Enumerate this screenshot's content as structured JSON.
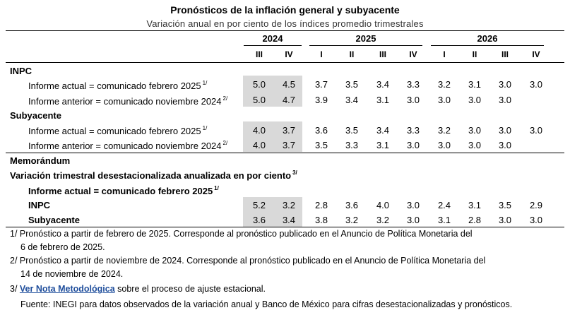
{
  "title": "Pronósticos de la inflación general y subyacente",
  "subtitle": "Variación anual en por ciento de los índices promedio trimestrales",
  "years": [
    "2024",
    "2025",
    "2026"
  ],
  "quarters": [
    "III",
    "IV",
    "I",
    "II",
    "III",
    "IV",
    "I",
    "II",
    "III",
    "IV"
  ],
  "sections": {
    "inpc": "INPC",
    "subyacente": "Subyacente",
    "memo": "Memorándum",
    "memo_sub": "Variación trimestral desestacionalizada anualizada en por ciento",
    "memo_sub_note": "3/",
    "memo_informe": "Informe actual = comunicado febrero 2025",
    "memo_informe_note": "1/",
    "memo_inpc": "INPC",
    "memo_subyacente": "Subyacente"
  },
  "row_labels": {
    "actual": "Informe actual = comunicado febrero 2025",
    "actual_note": "1/",
    "anterior": "Informe anterior = comunicado noviembre 2024",
    "anterior_note": "2/"
  },
  "inpc_actual": [
    "5.0",
    "4.5",
    "3.7",
    "3.5",
    "3.4",
    "3.3",
    "3.2",
    "3.1",
    "3.0",
    "3.0"
  ],
  "inpc_anterior": [
    "5.0",
    "4.7",
    "3.9",
    "3.4",
    "3.1",
    "3.0",
    "3.0",
    "3.0",
    "3.0",
    ""
  ],
  "sub_actual": [
    "4.0",
    "3.7",
    "3.6",
    "3.5",
    "3.4",
    "3.3",
    "3.2",
    "3.0",
    "3.0",
    "3.0"
  ],
  "sub_anterior": [
    "4.0",
    "3.7",
    "3.5",
    "3.3",
    "3.1",
    "3.0",
    "3.0",
    "3.0",
    "3.0",
    ""
  ],
  "memo_inpc_vals": [
    "5.2",
    "3.2",
    "2.8",
    "3.6",
    "4.0",
    "3.0",
    "2.4",
    "3.1",
    "3.5",
    "2.9"
  ],
  "memo_sub_vals": [
    "3.6",
    "3.4",
    "3.8",
    "3.2",
    "3.2",
    "3.0",
    "3.1",
    "2.8",
    "3.0",
    "3.0"
  ],
  "notes": {
    "n1a": "1/ Pronóstico a partir de febrero de 2025. Corresponde al pronóstico publicado en el Anuncio de Política Monetaria del",
    "n1b": "6 de febrero de 2025.",
    "n2a": "2/ Pronóstico a partir de noviembre de 2024. Corresponde al pronóstico publicado en el Anuncio de Política Monetaria del",
    "n2b": "14 de noviembre de 2024.",
    "n3_prefix": "3/ ",
    "n3_link": "Ver Nota Metodológica",
    "n3_suffix": " sobre el proceso de ajuste estacional.",
    "fuente": "Fuente: INEGI para datos observados de la variación anual y Banco de México para cifras desestacionalizadas y pronósticos."
  }
}
